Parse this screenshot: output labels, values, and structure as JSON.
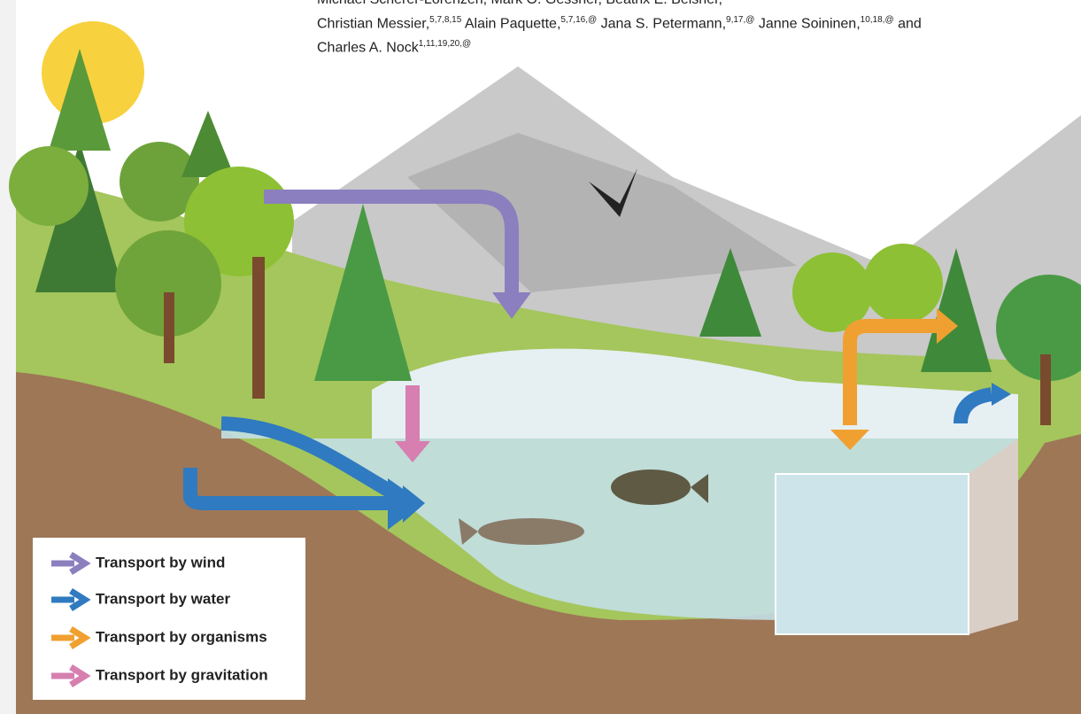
{
  "authors": {
    "lines": [
      [
        {
          "name": "Michael Scherer-Lorenzen,"
        },
        {
          "name": "Mark O. Gessner,"
        },
        {
          "name": "Beatrix E. Beisner,"
        }
      ],
      [
        {
          "name": "Christian Messier,",
          "sup": "5,7,8,15"
        },
        {
          "name": "Alain Paquette,",
          "sup": "5,7,16,@"
        },
        {
          "name": "Jana S. Petermann,",
          "sup": "9,17,@"
        },
        {
          "name": "Janne Soininen,",
          "sup": "10,18,@"
        },
        {
          "name": "and"
        }
      ],
      [
        {
          "name": "Charles A. Nock",
          "sup": "1,11,19,20,@"
        }
      ]
    ]
  },
  "legend": {
    "items": [
      {
        "label": "Transport by wind"
      },
      {
        "label": "Transport by water"
      },
      {
        "label": "Transport by organisms"
      },
      {
        "label": "Transport by gravitation"
      }
    ]
  }
}
